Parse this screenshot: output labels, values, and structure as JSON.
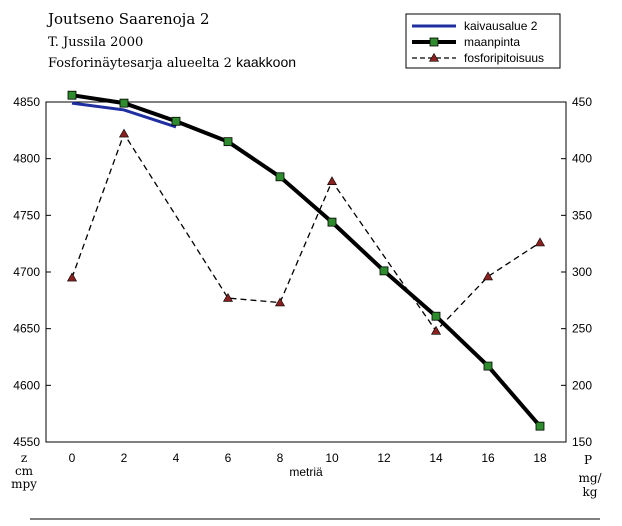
{
  "header": {
    "line1": "Joutseno Saarenoja 2",
    "line2": "T. Jussila 2000",
    "line3a": "Fosforinäytesarja alueelta 2",
    "line3b": "kaakkoon"
  },
  "axis_units": {
    "left": [
      "z",
      "cm",
      "mpy"
    ],
    "right": [
      "P",
      "mg/",
      "kg"
    ]
  },
  "chart_data": {
    "type": "line",
    "xlabel": "metriä",
    "xlim": [
      -1,
      19
    ],
    "xticks": [
      0,
      2,
      4,
      6,
      8,
      10,
      12,
      14,
      16,
      18
    ],
    "y_left": {
      "ylim": [
        4550,
        4850
      ],
      "ticks": [
        4550,
        4600,
        4650,
        4700,
        4750,
        4800,
        4850
      ]
    },
    "y_right": {
      "ylim": [
        150,
        450
      ],
      "ticks": [
        150,
        200,
        250,
        300,
        350,
        400,
        450
      ]
    },
    "legend_position": "top-right",
    "grid": false,
    "series": [
      {
        "name": "kaivausalue 2",
        "axis": "left",
        "color": "#1f2fa0",
        "style": "solid",
        "marker": "none",
        "x": [
          0,
          2,
          4
        ],
        "values": [
          4849,
          4843,
          4828
        ]
      },
      {
        "name": "maanpinta",
        "axis": "left",
        "color": "#000000",
        "style": "solid",
        "marker": "square",
        "marker_color": "#2e8b2e",
        "x": [
          0,
          2,
          4,
          6,
          8,
          10,
          12,
          14,
          16,
          18
        ],
        "values": [
          4856,
          4849,
          4833,
          4815,
          4784,
          4744,
          4701,
          4661,
          4617,
          4564
        ]
      },
      {
        "name": "fosforipitoisuus",
        "axis": "right",
        "color": "#000000",
        "style": "dashed",
        "marker": "triangle",
        "marker_color": "#8b2020",
        "x": [
          0,
          2,
          6,
          8,
          10,
          14,
          16,
          18
        ],
        "values": [
          295,
          422,
          277,
          273,
          380,
          248,
          296,
          326
        ]
      }
    ]
  }
}
